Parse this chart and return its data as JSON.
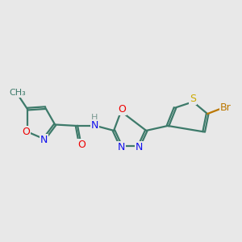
{
  "bg_color": "#e8e8e8",
  "bond_color": "#3d7a6a",
  "bond_width": 1.6,
  "atom_colors": {
    "O": "#ee0000",
    "N": "#1010ee",
    "S": "#ccaa00",
    "Br": "#bb7700",
    "C": "#3d7a6a",
    "H": "#7a9a92"
  }
}
